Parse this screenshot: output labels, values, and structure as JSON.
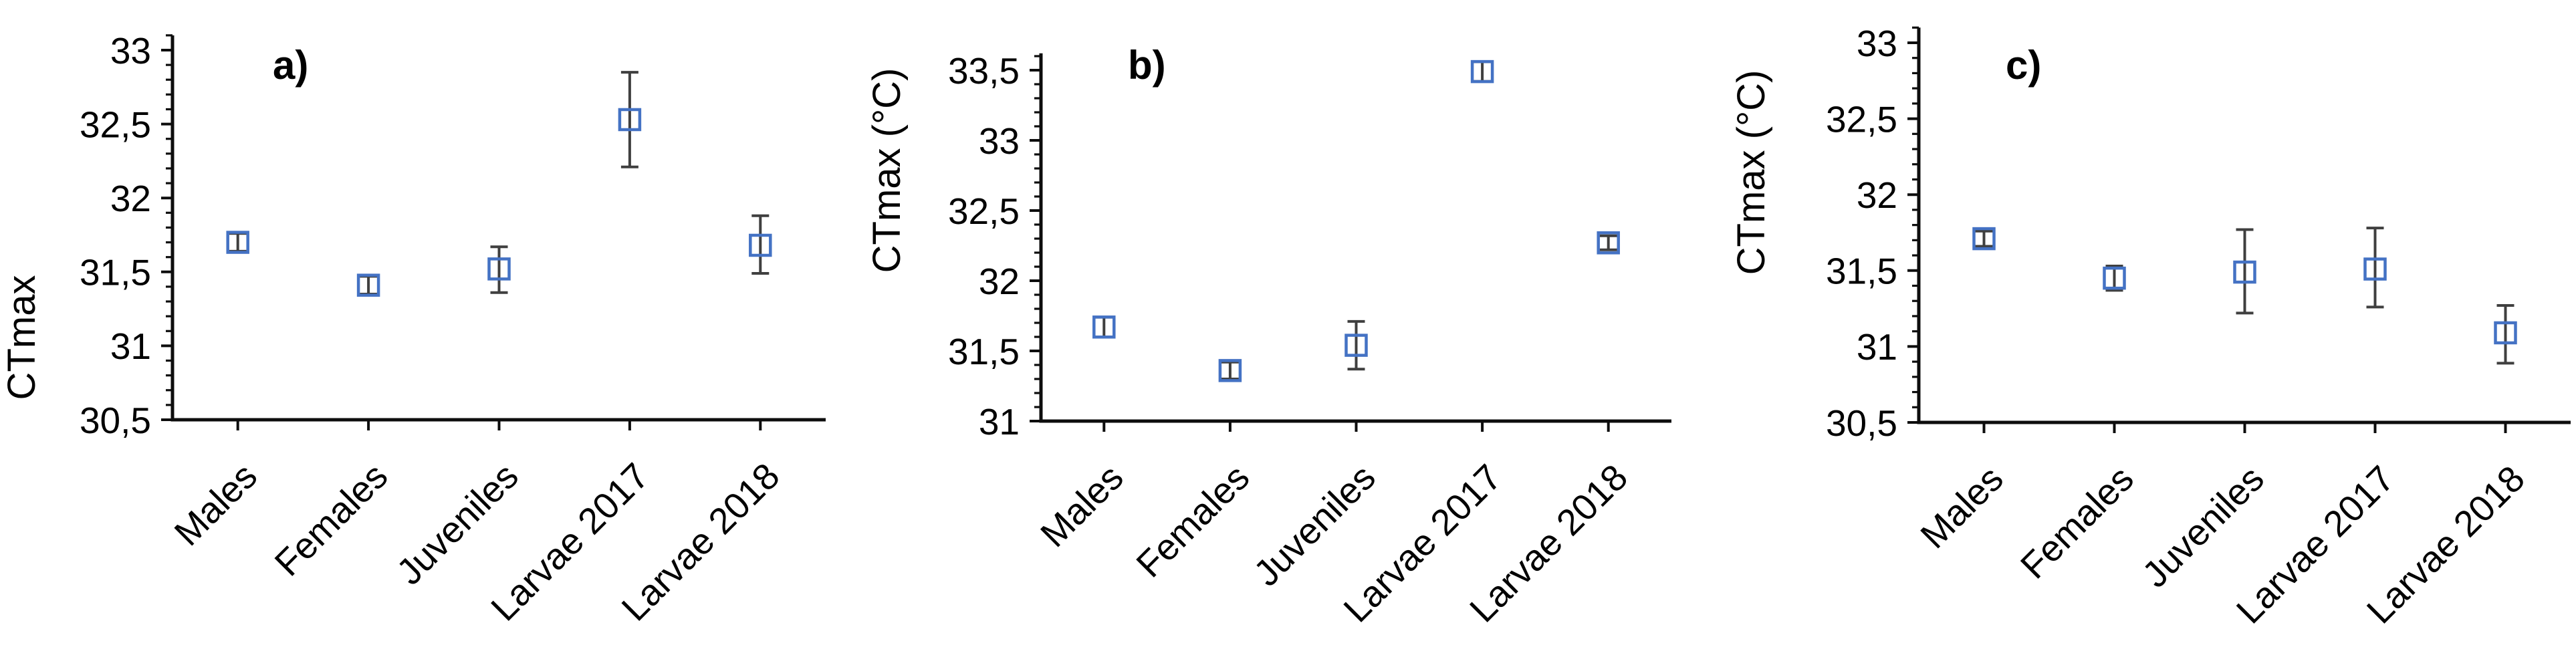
{
  "figure": {
    "background_color": "#ffffff",
    "marker_color": "#4472C4",
    "errorbar_color": "#3f3f3f",
    "axis_color": "#0d0d0d",
    "text_color": "#000000",
    "marker_shape": "open-square"
  },
  "chart_data": [
    {
      "type": "scatter",
      "panel_label": "a)",
      "ylabel": "CTmax",
      "categories": [
        "Males",
        "Females",
        "Juveniles",
        "Larvae 2017",
        "Larvae 2018"
      ],
      "series": [
        {
          "values": [
            31.7,
            31.41,
            31.52,
            32.53,
            31.68
          ],
          "err_lo": [
            31.64,
            31.35,
            31.36,
            32.21,
            31.49
          ],
          "err_hi": [
            31.76,
            31.47,
            31.67,
            32.85,
            31.88
          ]
        }
      ],
      "ylim": [
        30.5,
        33.0
      ],
      "ytick_step": 0.5,
      "ytick_labels": [
        "30,5",
        "31",
        "31,5",
        "32",
        "32,5",
        "33"
      ],
      "minor_tick_step": 0.1,
      "axis_overshoot": 0.1,
      "grid": false,
      "legend": "none"
    },
    {
      "type": "scatter",
      "panel_label": "b)",
      "ylabel": "CTmax (°C)",
      "categories": [
        "Males",
        "Females",
        "Juveniles",
        "Larvae 2017",
        "Larvae 2018"
      ],
      "series": [
        {
          "values": [
            31.67,
            31.36,
            31.54,
            33.49,
            32.27
          ],
          "err_lo": [
            31.6,
            31.3,
            31.37,
            33.42,
            32.22
          ],
          "err_hi": [
            31.74,
            31.42,
            31.71,
            33.56,
            32.32
          ]
        }
      ],
      "ylim": [
        31.0,
        33.5
      ],
      "ytick_step": 0.5,
      "ytick_labels": [
        "31",
        "31,5",
        "32",
        "32,5",
        "33",
        "33,5"
      ],
      "minor_tick_step": 0.1,
      "axis_overshoot": 0.12,
      "grid": false,
      "legend": "none"
    },
    {
      "type": "scatter",
      "panel_label": "c)",
      "ylabel": "CTmax (°C)",
      "categories": [
        "Males",
        "Females",
        "Juveniles",
        "Larvae 2017",
        "Larvae 2018"
      ],
      "series": [
        {
          "values": [
            31.71,
            31.45,
            31.49,
            31.51,
            31.09
          ],
          "err_lo": [
            31.66,
            31.37,
            31.22,
            31.26,
            30.89
          ],
          "err_hi": [
            31.76,
            31.53,
            31.77,
            31.78,
            31.27
          ]
        }
      ],
      "ylim": [
        30.5,
        33.0
      ],
      "ytick_step": 0.5,
      "ytick_labels": [
        "30,5",
        "31",
        "31,5",
        "32",
        "32,5",
        "33"
      ],
      "minor_tick_step": 0.1,
      "axis_overshoot": 0.1,
      "grid": false,
      "legend": "none"
    }
  ]
}
